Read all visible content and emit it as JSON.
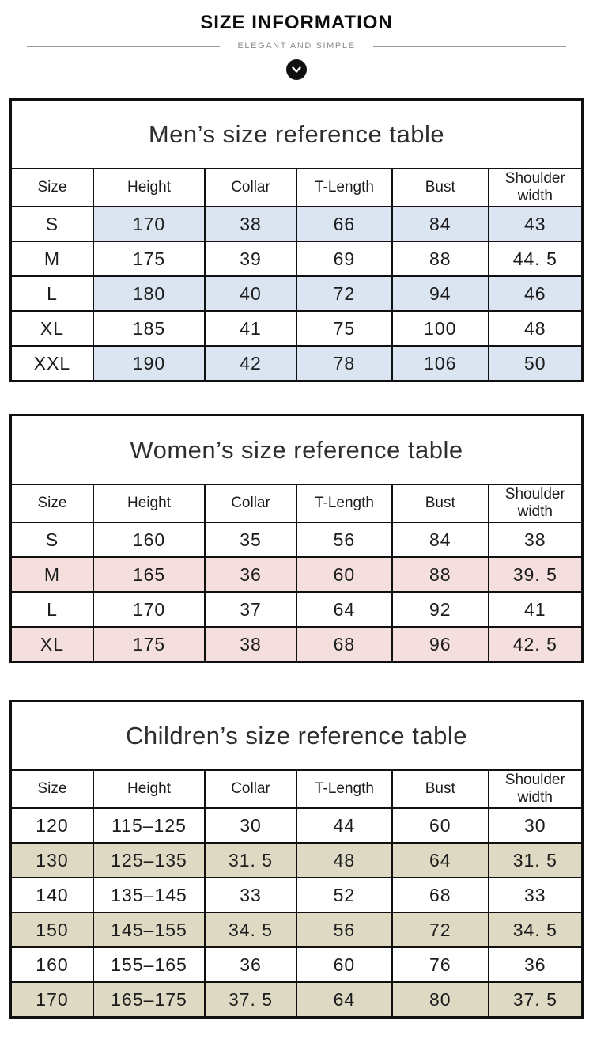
{
  "header": {
    "title": "SIZE INFORMATION",
    "subtitle": "ELEGANT AND SIMPLE",
    "scroll_icon": "chevron-down"
  },
  "colors": {
    "men_highlight": "#dbe5f1",
    "women_highlight": "#f4dfde",
    "children_highlight": "#ddd9c3",
    "table_border": "#101010",
    "subtitle_gray": "#8d8d8d"
  },
  "tables": [
    {
      "id": "men",
      "title": "Men’s size reference table",
      "columns": [
        "Size",
        "Height",
        "Collar",
        "T-Length",
        "Bust",
        "Shoulder width"
      ],
      "highlight_color": "#dbe5f1",
      "highlight_includes_size_column": false,
      "rows": [
        {
          "highlighted": true,
          "cells": [
            "S",
            "170",
            "38",
            "66",
            "84",
            "43"
          ]
        },
        {
          "highlighted": false,
          "cells": [
            "M",
            "175",
            "39",
            "69",
            "88",
            "44. 5"
          ]
        },
        {
          "highlighted": true,
          "cells": [
            "L",
            "180",
            "40",
            "72",
            "94",
            "46"
          ]
        },
        {
          "highlighted": false,
          "cells": [
            "XL",
            "185",
            "41",
            "75",
            "100",
            "48"
          ]
        },
        {
          "highlighted": true,
          "cells": [
            "XXL",
            "190",
            "42",
            "78",
            "106",
            "50"
          ]
        }
      ]
    },
    {
      "id": "women",
      "title": "Women’s size reference table",
      "columns": [
        "Size",
        "Height",
        "Collar",
        "T-Length",
        "Bust",
        "Shoulder width"
      ],
      "highlight_color": "#f4dfde",
      "highlight_includes_size_column": true,
      "rows": [
        {
          "highlighted": false,
          "cells": [
            "S",
            "160",
            "35",
            "56",
            "84",
            "38"
          ]
        },
        {
          "highlighted": true,
          "cells": [
            "M",
            "165",
            "36",
            "60",
            "88",
            "39. 5"
          ]
        },
        {
          "highlighted": false,
          "cells": [
            "L",
            "170",
            "37",
            "64",
            "92",
            "41"
          ]
        },
        {
          "highlighted": true,
          "cells": [
            "XL",
            "175",
            "38",
            "68",
            "96",
            "42. 5"
          ]
        }
      ]
    },
    {
      "id": "children",
      "title": "Children’s size reference table",
      "columns": [
        "Size",
        "Height",
        "Collar",
        "T-Length",
        "Bust",
        "Shoulder width"
      ],
      "highlight_color": "#ddd9c3",
      "highlight_includes_size_column": true,
      "rows": [
        {
          "highlighted": false,
          "cells": [
            "120",
            "115–125",
            "30",
            "44",
            "60",
            "30"
          ]
        },
        {
          "highlighted": true,
          "cells": [
            "130",
            "125–135",
            "31. 5",
            "48",
            "64",
            "31. 5"
          ]
        },
        {
          "highlighted": false,
          "cells": [
            "140",
            "135–145",
            "33",
            "52",
            "68",
            "33"
          ]
        },
        {
          "highlighted": true,
          "cells": [
            "150",
            "145–155",
            "34. 5",
            "56",
            "72",
            "34. 5"
          ]
        },
        {
          "highlighted": false,
          "cells": [
            "160",
            "155–165",
            "36",
            "60",
            "76",
            "36"
          ]
        },
        {
          "highlighted": true,
          "cells": [
            "170",
            "165–175",
            "37. 5",
            "64",
            "80",
            "37. 5"
          ]
        }
      ]
    }
  ]
}
